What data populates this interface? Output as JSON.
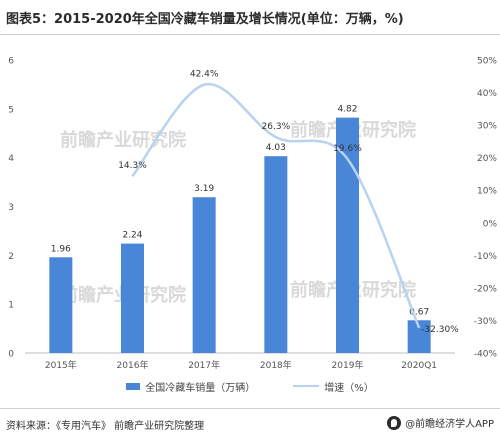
{
  "title": "图表5：2015-2020年全国冷藏车销量及增长情况(单位：万辆，%)",
  "watermark": {
    "text": "前瞻产业研究院"
  },
  "legend": {
    "bar_label": "全国冷藏车销量（万辆）",
    "line_label": "增速（%）"
  },
  "footer": {
    "source": "资料来源：《专用汽车》 前瞻产业研究院整理",
    "brand": "@前瞻经济学人APP"
  },
  "colors": {
    "bar": "#4a86d8",
    "line": "#b8d3f0"
  },
  "chart_data": {
    "type": "bar",
    "categories": [
      "2015年",
      "2016年",
      "2017年",
      "2018年",
      "2019年",
      "2020Q1"
    ],
    "series": [
      {
        "name": "全国冷藏车销量（万辆）",
        "type": "bar",
        "axis": "left",
        "values": [
          1.96,
          2.24,
          3.19,
          4.03,
          4.82,
          0.67
        ],
        "labels": [
          "1.96",
          "2.24",
          "3.19",
          "4.03",
          "4.82",
          "0.67"
        ]
      },
      {
        "name": "增速（%）",
        "type": "line",
        "axis": "right",
        "smooth": true,
        "values": [
          null,
          14.3,
          42.4,
          26.3,
          19.6,
          -32.3
        ],
        "labels": [
          "",
          "14.3%",
          "42.4%",
          "26.3%",
          "19.6%",
          "-32.30%"
        ]
      }
    ],
    "left_axis": {
      "ylim": [
        0,
        6
      ],
      "ticks": [
        "0",
        "1",
        "2",
        "3",
        "4",
        "5",
        "6"
      ]
    },
    "right_axis": {
      "ylim": [
        -40,
        50
      ],
      "ticks": [
        "-40%",
        "-30%",
        "-20%",
        "-10%",
        "0%",
        "10%",
        "20%",
        "30%",
        "40%",
        "50%"
      ]
    },
    "grid": false,
    "legend_position": "bottom"
  }
}
